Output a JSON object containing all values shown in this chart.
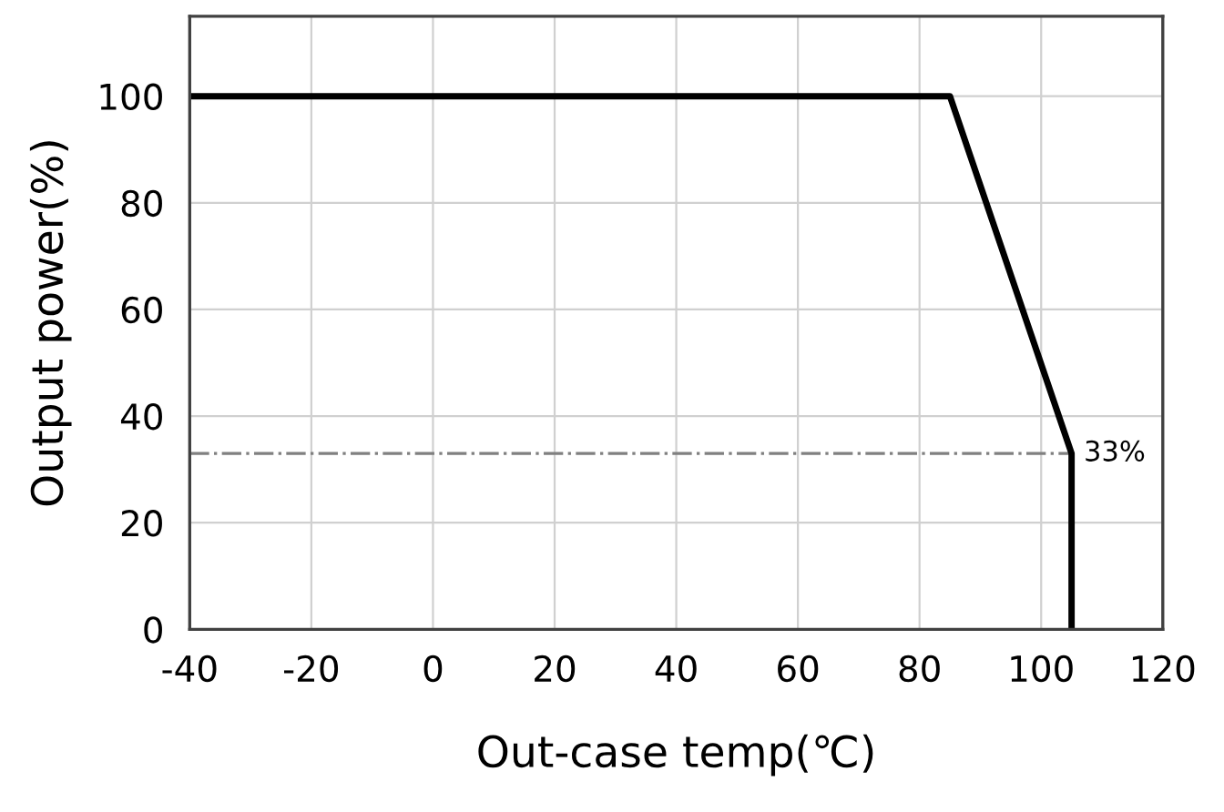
{
  "chart_data": {
    "type": "line",
    "xlabel": "Out-case temp(℃)",
    "ylabel": "Output power(%)",
    "x": [
      -40,
      85,
      105,
      105
    ],
    "series": [
      {
        "color": "#000000",
        "values": [
          100,
          100,
          33,
          0
        ]
      }
    ],
    "xlim": [
      -40,
      120
    ],
    "ylim": [
      0,
      115
    ],
    "xticks": [
      -40,
      -20,
      0,
      20,
      40,
      60,
      80,
      100,
      120
    ],
    "yticks": [
      0,
      20,
      40,
      60,
      80,
      100
    ],
    "grid": true,
    "line_style": "solid",
    "marker": "none",
    "ref_lines": [
      {
        "axis": "y",
        "value": 33,
        "label": "33%",
        "color": "#808080",
        "line_style": "dashdot"
      }
    ]
  }
}
